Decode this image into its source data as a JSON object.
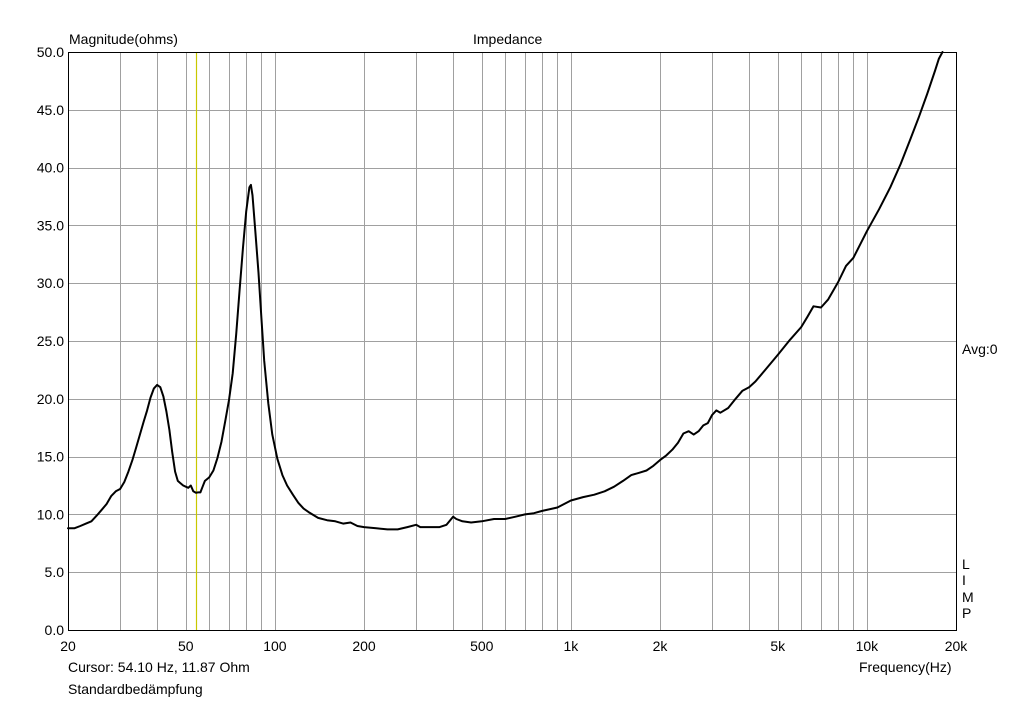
{
  "chart_data": {
    "type": "line",
    "title": "Impedance",
    "ylabel": "Magnitude(ohms)",
    "xlabel": "Frequency(Hz)",
    "x_scale": "log",
    "xlim": [
      20,
      20000
    ],
    "ylim": [
      0,
      50
    ],
    "grid": true,
    "x_ticks": [
      {
        "value": 20,
        "label": "20"
      },
      {
        "value": 50,
        "label": "50"
      },
      {
        "value": 100,
        "label": "100"
      },
      {
        "value": 200,
        "label": "200"
      },
      {
        "value": 500,
        "label": "500"
      },
      {
        "value": 1000,
        "label": "1k"
      },
      {
        "value": 2000,
        "label": "2k"
      },
      {
        "value": 5000,
        "label": "5k"
      },
      {
        "value": 10000,
        "label": "10k"
      },
      {
        "value": 20000,
        "label": "20k"
      }
    ],
    "y_ticks": [
      {
        "value": 0,
        "label": "0.0"
      },
      {
        "value": 5,
        "label": "5.0"
      },
      {
        "value": 10,
        "label": "10.0"
      },
      {
        "value": 15,
        "label": "15.0"
      },
      {
        "value": 20,
        "label": "20.0"
      },
      {
        "value": 25,
        "label": "25.0"
      },
      {
        "value": 30,
        "label": "30.0"
      },
      {
        "value": 35,
        "label": "35.0"
      },
      {
        "value": 40,
        "label": "40.0"
      },
      {
        "value": 45,
        "label": "45.0"
      },
      {
        "value": 50,
        "label": "50.0"
      }
    ],
    "cursor_x": 54.1,
    "series": [
      {
        "color": "#000000",
        "points": [
          [
            20,
            8.8
          ],
          [
            21,
            8.8
          ],
          [
            22,
            9.0
          ],
          [
            23,
            9.2
          ],
          [
            24,
            9.4
          ],
          [
            25,
            9.9
          ],
          [
            26,
            10.4
          ],
          [
            27,
            10.9
          ],
          [
            28,
            11.6
          ],
          [
            29,
            12.0
          ],
          [
            30,
            12.2
          ],
          [
            31,
            12.8
          ],
          [
            32,
            13.7
          ],
          [
            33,
            14.7
          ],
          [
            34,
            15.8
          ],
          [
            35,
            16.9
          ],
          [
            36,
            18.0
          ],
          [
            37,
            19.0
          ],
          [
            38,
            20.1
          ],
          [
            39,
            20.9
          ],
          [
            40,
            21.2
          ],
          [
            41,
            21.0
          ],
          [
            42,
            20.2
          ],
          [
            43,
            18.9
          ],
          [
            44,
            17.3
          ],
          [
            45,
            15.4
          ],
          [
            46,
            13.7
          ],
          [
            47,
            12.9
          ],
          [
            48,
            12.7
          ],
          [
            49,
            12.5
          ],
          [
            50,
            12.4
          ],
          [
            51,
            12.3
          ],
          [
            52,
            12.5
          ],
          [
            53,
            12.0
          ],
          [
            54.1,
            11.87
          ],
          [
            55,
            11.9
          ],
          [
            56,
            11.9
          ],
          [
            57,
            12.4
          ],
          [
            58,
            12.9
          ],
          [
            60,
            13.2
          ],
          [
            62,
            13.8
          ],
          [
            64,
            14.9
          ],
          [
            66,
            16.3
          ],
          [
            68,
            18.1
          ],
          [
            70,
            19.9
          ],
          [
            72,
            22.2
          ],
          [
            74,
            25.6
          ],
          [
            76,
            29.4
          ],
          [
            78,
            33.1
          ],
          [
            80,
            36.2
          ],
          [
            82,
            38.3
          ],
          [
            83,
            38.5
          ],
          [
            84,
            37.6
          ],
          [
            86,
            34.3
          ],
          [
            88,
            30.9
          ],
          [
            90,
            27.0
          ],
          [
            92,
            23.3
          ],
          [
            95,
            19.6
          ],
          [
            98,
            16.9
          ],
          [
            102,
            14.8
          ],
          [
            106,
            13.4
          ],
          [
            110,
            12.5
          ],
          [
            115,
            11.7
          ],
          [
            120,
            11.0
          ],
          [
            125,
            10.5
          ],
          [
            130,
            10.2
          ],
          [
            140,
            9.7
          ],
          [
            150,
            9.5
          ],
          [
            160,
            9.4
          ],
          [
            170,
            9.2
          ],
          [
            180,
            9.3
          ],
          [
            190,
            9.0
          ],
          [
            200,
            8.9
          ],
          [
            220,
            8.8
          ],
          [
            240,
            8.7
          ],
          [
            260,
            8.7
          ],
          [
            280,
            8.9
          ],
          [
            300,
            9.1
          ],
          [
            310,
            8.9
          ],
          [
            330,
            8.9
          ],
          [
            360,
            8.9
          ],
          [
            380,
            9.1
          ],
          [
            400,
            9.8
          ],
          [
            410,
            9.6
          ],
          [
            430,
            9.4
          ],
          [
            460,
            9.3
          ],
          [
            500,
            9.4
          ],
          [
            550,
            9.6
          ],
          [
            600,
            9.6
          ],
          [
            650,
            9.8
          ],
          [
            700,
            10.0
          ],
          [
            750,
            10.1
          ],
          [
            800,
            10.3
          ],
          [
            900,
            10.6
          ],
          [
            1000,
            11.2
          ],
          [
            1100,
            11.5
          ],
          [
            1200,
            11.7
          ],
          [
            1300,
            12.0
          ],
          [
            1400,
            12.4
          ],
          [
            1500,
            12.9
          ],
          [
            1600,
            13.4
          ],
          [
            1700,
            13.6
          ],
          [
            1800,
            13.8
          ],
          [
            1900,
            14.2
          ],
          [
            2000,
            14.7
          ],
          [
            2100,
            15.1
          ],
          [
            2200,
            15.6
          ],
          [
            2300,
            16.2
          ],
          [
            2400,
            17.0
          ],
          [
            2500,
            17.2
          ],
          [
            2600,
            16.9
          ],
          [
            2700,
            17.2
          ],
          [
            2800,
            17.7
          ],
          [
            2900,
            17.9
          ],
          [
            3000,
            18.6
          ],
          [
            3100,
            19.0
          ],
          [
            3200,
            18.8
          ],
          [
            3400,
            19.2
          ],
          [
            3600,
            20.0
          ],
          [
            3800,
            20.7
          ],
          [
            4000,
            21.0
          ],
          [
            4200,
            21.5
          ],
          [
            4500,
            22.4
          ],
          [
            5000,
            23.8
          ],
          [
            5500,
            25.1
          ],
          [
            6000,
            26.2
          ],
          [
            6300,
            27.1
          ],
          [
            6600,
            28.0
          ],
          [
            7000,
            27.9
          ],
          [
            7400,
            28.6
          ],
          [
            8000,
            30.1
          ],
          [
            8500,
            31.5
          ],
          [
            9000,
            32.2
          ],
          [
            10000,
            34.5
          ],
          [
            11000,
            36.4
          ],
          [
            12000,
            38.3
          ],
          [
            13000,
            40.3
          ],
          [
            14000,
            42.4
          ],
          [
            15000,
            44.4
          ],
          [
            16000,
            46.4
          ],
          [
            17000,
            48.4
          ],
          [
            17500,
            49.4
          ],
          [
            18000,
            50.0
          ]
        ]
      }
    ]
  },
  "labels": {
    "ylabel": "Magnitude(ohms)",
    "title": "Impedance",
    "avg": "Avg:0",
    "lim": [
      "L",
      "I",
      "M",
      "P"
    ],
    "cursor": "Cursor: 54.10 Hz, 11.87 Ohm",
    "damping": "Standardbedämpfung",
    "xlabel": "Frequency(Hz)"
  },
  "colors": {
    "grid": "#a0a0a0",
    "frame": "#000000",
    "curve": "#000000",
    "cursor": "#c8c800"
  }
}
